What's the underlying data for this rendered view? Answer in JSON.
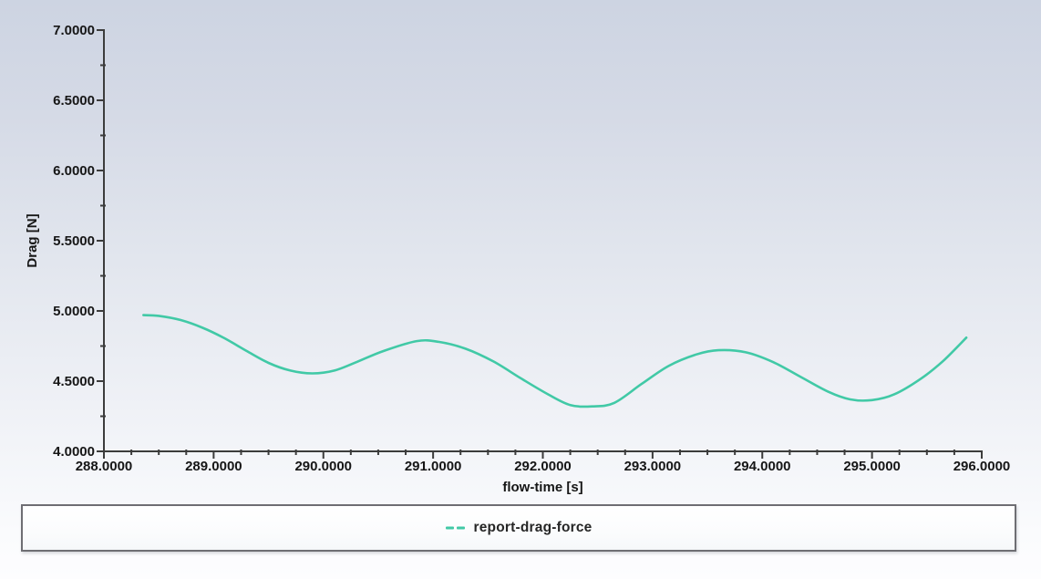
{
  "window": {
    "background_top": "#cdd4e2",
    "background_bottom": "#fdfdfe"
  },
  "colors": {
    "axis": "#3c3c3c",
    "tick_text": "#161616",
    "series_teal": "#41c9a6",
    "legend_border": "#6e6e73"
  },
  "chart_data": {
    "type": "line",
    "title": "",
    "xlabel": "flow-time [s]",
    "ylabel": "Drag [N]",
    "xlim": [
      288.0,
      296.0
    ],
    "ylim": [
      4.0,
      7.0
    ],
    "x_major_step": 1.0,
    "x_minor_step": 0.25,
    "y_major_step": 0.5,
    "y_minor_step": 0.25,
    "tick_label_decimals": 4,
    "grid": false,
    "legend_position": "bottom",
    "x_tick_labels": [
      "288.0000",
      "289.0000",
      "290.0000",
      "291.0000",
      "292.0000",
      "293.0000",
      "294.0000",
      "295.0000",
      "296.0000"
    ],
    "y_tick_labels": [
      "4.0000",
      "4.5000",
      "5.0000",
      "5.5000",
      "6.0000",
      "6.5000",
      "7.0000"
    ],
    "series": [
      {
        "name": "report-drag-force",
        "color": "#41c9a6",
        "line_style": "solid",
        "points": [
          [
            288.36,
            4.97
          ],
          [
            288.5,
            4.965
          ],
          [
            288.7,
            4.935
          ],
          [
            288.9,
            4.88
          ],
          [
            289.1,
            4.805
          ],
          [
            289.3,
            4.715
          ],
          [
            289.5,
            4.63
          ],
          [
            289.7,
            4.575
          ],
          [
            289.9,
            4.555
          ],
          [
            290.1,
            4.575
          ],
          [
            290.3,
            4.635
          ],
          [
            290.55,
            4.715
          ],
          [
            290.85,
            4.785
          ],
          [
            291.05,
            4.78
          ],
          [
            291.3,
            4.73
          ],
          [
            291.55,
            4.64
          ],
          [
            291.8,
            4.52
          ],
          [
            292.05,
            4.405
          ],
          [
            292.25,
            4.33
          ],
          [
            292.45,
            4.32
          ],
          [
            292.65,
            4.345
          ],
          [
            292.9,
            4.48
          ],
          [
            293.15,
            4.61
          ],
          [
            293.4,
            4.69
          ],
          [
            293.6,
            4.72
          ],
          [
            293.85,
            4.705
          ],
          [
            294.1,
            4.635
          ],
          [
            294.35,
            4.53
          ],
          [
            294.6,
            4.425
          ],
          [
            294.8,
            4.37
          ],
          [
            295.0,
            4.365
          ],
          [
            295.2,
            4.405
          ],
          [
            295.45,
            4.52
          ],
          [
            295.65,
            4.645
          ],
          [
            295.86,
            4.81
          ]
        ]
      }
    ]
  },
  "legend": {
    "label": "report-drag-force"
  }
}
